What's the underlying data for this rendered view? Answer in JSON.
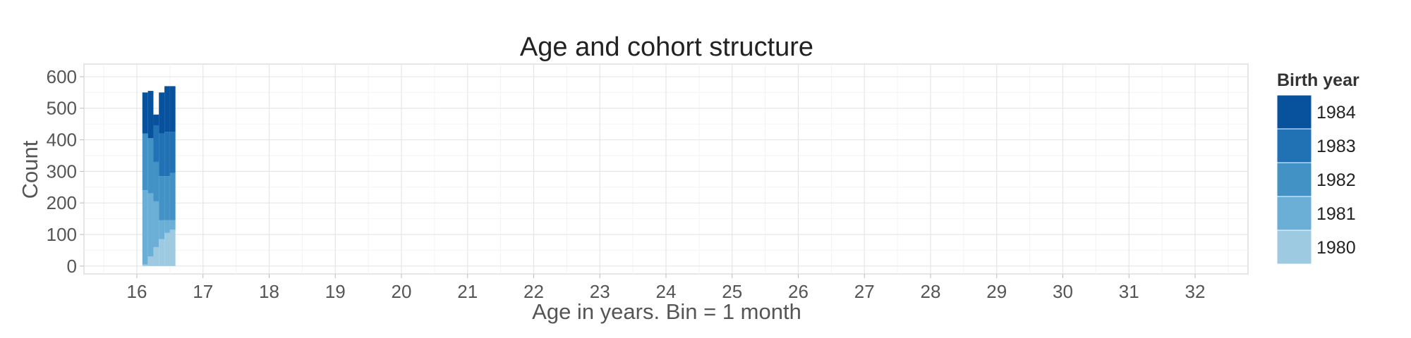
{
  "chart_data": {
    "type": "bar",
    "stacked": true,
    "title": "Age and cohort structure",
    "xlabel": "Age in years. Bin = 1 month",
    "ylabel": "Count",
    "xlim": [
      15.2,
      32.8
    ],
    "ylim": [
      -25,
      640
    ],
    "x_ticks": [
      16,
      17,
      18,
      19,
      20,
      21,
      22,
      23,
      24,
      25,
      26,
      27,
      28,
      29,
      30,
      31,
      32
    ],
    "y_ticks": [
      0,
      100,
      200,
      300,
      400,
      500,
      600
    ],
    "bin_width_years": 0.0833,
    "bin_starts": [
      16.083,
      16.167,
      16.25,
      16.333,
      16.417,
      16.5
    ],
    "grid": true,
    "legend": {
      "title": "Birth year",
      "position": "right"
    },
    "series": [
      {
        "name": "1980",
        "color": "#9ecae1",
        "values": [
          5,
          30,
          60,
          85,
          105,
          115
        ]
      },
      {
        "name": "1981",
        "color": "#6baed6",
        "values": [
          235,
          200,
          145,
          60,
          40,
          30
        ]
      },
      {
        "name": "1982",
        "color": "#4292c6",
        "values": [
          180,
          175,
          125,
          140,
          140,
          150
        ]
      },
      {
        "name": "1983",
        "color": "#2171b5",
        "values": [
          0,
          0,
          115,
          135,
          140,
          130
        ]
      },
      {
        "name": "1984",
        "color": "#08519c",
        "values": [
          130,
          150,
          35,
          130,
          145,
          145
        ]
      }
    ]
  }
}
